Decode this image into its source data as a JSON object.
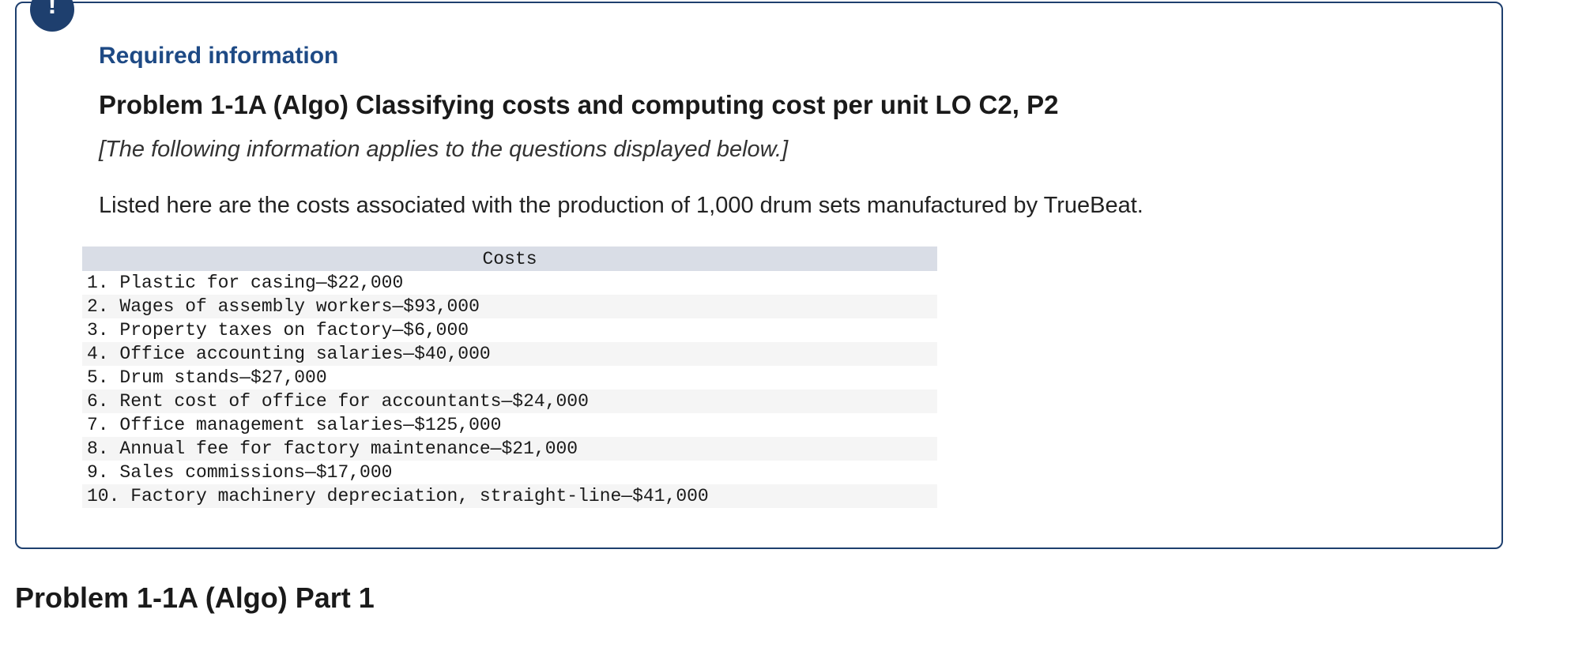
{
  "info_box": {
    "badge_symbol": "!",
    "heading": "Required information",
    "problem_title": "Problem 1-1A (Algo) Classifying costs and computing cost per unit LO C2, P2",
    "note": "[The following information applies to the questions displayed below.]",
    "intro": "Listed here are the costs associated with the production of 1,000 drum sets manufactured by TrueBeat.",
    "table": {
      "header": "Costs",
      "rows": [
        "1. Plastic for casing—$22,000",
        "2. Wages of assembly workers—$93,000",
        "3. Property taxes on factory—$6,000",
        "4. Office accounting salaries—$40,000",
        "5. Drum stands—$27,000",
        "6. Rent cost of office for accountants—$24,000",
        "7. Office management salaries—$125,000",
        "8. Annual fee for factory maintenance—$21,000",
        "9. Sales commissions—$17,000",
        "10. Factory machinery depreciation, straight-line—$41,000"
      ]
    }
  },
  "part_title": "Problem 1-1A (Algo) Part 1",
  "colors": {
    "accent": "#1e3f6e",
    "heading_blue": "#1e4a85",
    "table_header_bg": "#d9dde6",
    "table_stripe_bg": "#f5f5f5"
  }
}
